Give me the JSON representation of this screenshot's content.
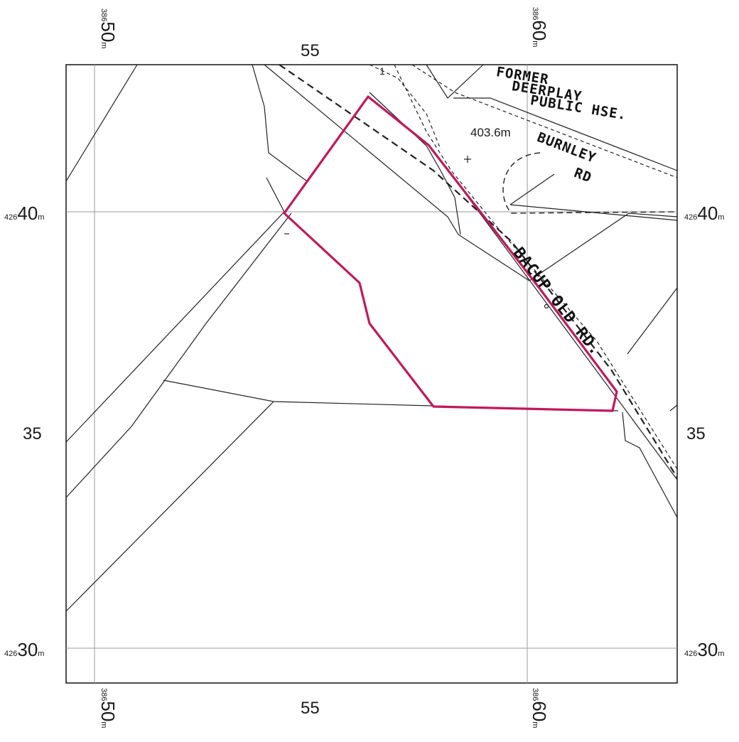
{
  "grid_labels": {
    "top_left_easting": {
      "prefix": "386",
      "main": "50",
      "suffix": "m"
    },
    "top_mid_easting": "55",
    "top_right_easting": {
      "prefix": "386",
      "main": "60",
      "suffix": "m"
    },
    "bottom_left_easting": {
      "prefix": "386",
      "main": "50",
      "suffix": "m"
    },
    "bottom_mid_easting": "55",
    "bottom_right_easting": {
      "prefix": "386",
      "main": "60",
      "suffix": "m"
    },
    "left_upper_northing": {
      "prefix": "426",
      "main": "40",
      "suffix": "m"
    },
    "right_upper_northing": {
      "prefix": "426",
      "main": "40",
      "suffix": "m"
    },
    "left_mid_northing": "35",
    "right_mid_northing": "35",
    "left_lower_northing": {
      "prefix": "426",
      "main": "30",
      "suffix": "m"
    },
    "right_lower_northing": {
      "prefix": "426",
      "main": "30",
      "suffix": "m"
    }
  },
  "annotations": {
    "spot_height": "403.6m",
    "feature_number": "1",
    "former_line1": "FORMER",
    "former_line2": "DEERPLAY",
    "former_line3": "PUBLIC HSE.",
    "road1_line1": "BURNLEY",
    "road1_line2": "RD",
    "road2": "BACUP OLD RD."
  },
  "colors": {
    "boundary": "#c2185b",
    "linework": "#222222",
    "grid": "#999999"
  }
}
